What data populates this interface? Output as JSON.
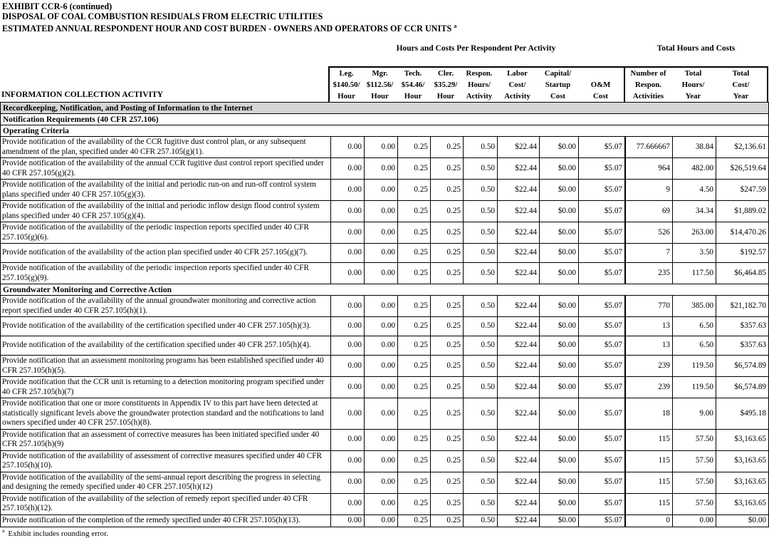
{
  "title": {
    "line1": "EXHIBIT CCR-6 (continued)",
    "line2": "DISPOSAL OF COAL COMBUSTION RESIDUALS FROM ELECTRIC UTILITIES",
    "line3": "ESTIMATED ANNUAL RESPONDENT HOUR AND COST BURDEN - OWNERS AND OPERATORS OF CCR UNITS",
    "note_mark": "a"
  },
  "table": {
    "group_headers": {
      "per_activity": "Hours and Costs Per Respondent Per Activity",
      "totals": "Total Hours and Costs"
    },
    "info_header": "INFORMATION COLLECTION ACTIVITY",
    "columns": [
      {
        "id": "leg",
        "lines": [
          "Leg.",
          "$140.50/",
          "Hour"
        ]
      },
      {
        "id": "mgr",
        "lines": [
          "Mgr.",
          "$112.56/",
          "Hour"
        ]
      },
      {
        "id": "tech",
        "lines": [
          "Tech.",
          "$54.46/",
          "Hour"
        ]
      },
      {
        "id": "cler",
        "lines": [
          "Cler.",
          "$35.29/",
          "Hour"
        ]
      },
      {
        "id": "respon-hours",
        "lines": [
          "Respon.",
          "Hours/",
          "Activity"
        ]
      },
      {
        "id": "labor-cost",
        "lines": [
          "Labor",
          "Cost/",
          "Activity"
        ]
      },
      {
        "id": "capital-startup",
        "lines": [
          "Capital/",
          "Startup",
          "Cost"
        ]
      },
      {
        "id": "om-cost",
        "lines": [
          "",
          "O&M",
          "Cost"
        ]
      },
      {
        "id": "number-respon-activities",
        "lines": [
          "Number of",
          "Respon.",
          "Activities"
        ]
      },
      {
        "id": "total-hours-year",
        "lines": [
          "Total",
          "Hours/",
          "Year"
        ]
      },
      {
        "id": "total-cost-year",
        "lines": [
          "Total",
          "Cost/",
          "Year"
        ]
      }
    ],
    "rows": [
      {
        "type": "section-shaded",
        "label": "Recordkeeping, Notification, and Posting of Information to the Internet"
      },
      {
        "type": "section",
        "label": "Notification Requirements (40 CFR 257.106)"
      },
      {
        "type": "section",
        "label": "Operating Criteria"
      },
      {
        "type": "data",
        "activity": "Provide notification of the availability of the CCR fugitive dust control plan, or any subsequent amendment of the plan, specified under 40 CFR 257.105(g)(1).",
        "values": [
          "0.00",
          "0.00",
          "0.25",
          "0.25",
          "0.50",
          "$22.44",
          "$0.00",
          "$5.07",
          "77.666667",
          "38.84",
          "$2,136.61"
        ]
      },
      {
        "type": "data",
        "activity": "Provide notification of the availability of the annual CCR fugitive dust control report specified under 40 CFR 257.105(g)(2).",
        "values": [
          "0.00",
          "0.00",
          "0.25",
          "0.25",
          "0.50",
          "$22.44",
          "$0.00",
          "$5.07",
          "964",
          "482.00",
          "$26,519.64"
        ]
      },
      {
        "type": "data",
        "activity": "Provide notification of the availability of the initial and periodic run-on and run-off control system plans specified under 40 CFR 257.105(g)(3).",
        "values": [
          "0.00",
          "0.00",
          "0.25",
          "0.25",
          "0.50",
          "$22.44",
          "$0.00",
          "$5.07",
          "9",
          "4.50",
          "$247.59"
        ]
      },
      {
        "type": "data",
        "activity": "Provide notification of the availability of the initial and periodic inflow design flood control system plans specified under 40 CFR 257.105(g)(4).",
        "values": [
          "0.00",
          "0.00",
          "0.25",
          "0.25",
          "0.50",
          "$22.44",
          "$0.00",
          "$5.07",
          "69",
          "34.34",
          "$1,889.02"
        ]
      },
      {
        "type": "data",
        "activity": "Provide notification of the availability of the periodic inspection reports specified under 40 CFR 257.105(g)(6).",
        "values": [
          "0.00",
          "0.00",
          "0.25",
          "0.25",
          "0.50",
          "$22.44",
          "$0.00",
          "$5.07",
          "526",
          "263.00",
          "$14,470.26"
        ]
      },
      {
        "type": "data",
        "activity": "Provide notification of the availability of the action plan specified under 40 CFR 257.105(g)(7).",
        "values": [
          "0.00",
          "0.00",
          "0.25",
          "0.25",
          "0.50",
          "$22.44",
          "$0.00",
          "$5.07",
          "7",
          "3.50",
          "$192.57"
        ]
      },
      {
        "type": "data",
        "activity": "Provide notification of the availability of the periodic inspection reports specified under 40 CFR 257.105(g)(9).",
        "values": [
          "0.00",
          "0.00",
          "0.25",
          "0.25",
          "0.50",
          "$22.44",
          "$0.00",
          "$5.07",
          "235",
          "117.50",
          "$6,464.85"
        ]
      },
      {
        "type": "section",
        "label": "Groundwater Monitoring and Corrective Action"
      },
      {
        "type": "data",
        "activity": "Provide notification of the availability of the annual groundwater monitoring and corrective action report specified under 40 CFR 257.105(h)(1).",
        "values": [
          "0.00",
          "0.00",
          "0.25",
          "0.25",
          "0.50",
          "$22.44",
          "$0.00",
          "$5.07",
          "770",
          "385.00",
          "$21,182.70"
        ]
      },
      {
        "type": "data",
        "activity": "Provide notification of the availability of the certification specified under 40 CFR 257.105(h)(3).",
        "values": [
          "0.00",
          "0.00",
          "0.25",
          "0.25",
          "0.50",
          "$22.44",
          "$0.00",
          "$5.07",
          "13",
          "6.50",
          "$357.63"
        ]
      },
      {
        "type": "data",
        "activity": "Provide notification of the availability of the certification specified under 40 CFR 257.105(h)(4).",
        "values": [
          "0.00",
          "0.00",
          "0.25",
          "0.25",
          "0.50",
          "$22.44",
          "$0.00",
          "$5.07",
          "13",
          "6.50",
          "$357.63"
        ]
      },
      {
        "type": "data",
        "activity": "Provide notification that an assessment monitoring programs has been established specified under 40 CFR 257.105(h)(5).",
        "values": [
          "0.00",
          "0.00",
          "0.25",
          "0.25",
          "0.50",
          "$22.44",
          "$0.00",
          "$5.07",
          "239",
          "119.50",
          "$6,574.89"
        ]
      },
      {
        "type": "data",
        "activity": "Provide notification that the CCR unit is returning to a detection monitoring program specified under 40 CFR 257.105(h)(7)",
        "values": [
          "0.00",
          "0.00",
          "0.25",
          "0.25",
          "0.50",
          "$22.44",
          "$0.00",
          "$5.07",
          "239",
          "119.50",
          "$6,574.89"
        ]
      },
      {
        "type": "data",
        "activity": "Provide notification that one or more constituents in Appendix IV to this part have been detected at statistically significant levels above the groundwater protection standard and the notifications to land owners specified under 40 CFR 257.105(h)(8).",
        "values": [
          "0.00",
          "0.00",
          "0.25",
          "0.25",
          "0.50",
          "$22.44",
          "$0.00",
          "$5.07",
          "18",
          "9.00",
          "$495.18"
        ]
      },
      {
        "type": "data",
        "activity": "Provide notification that an assessment of corrective measures has been initiated specified under 40 CFR 257.105(h)(9)",
        "values": [
          "0.00",
          "0.00",
          "0.25",
          "0.25",
          "0.50",
          "$22.44",
          "$0.00",
          "$5.07",
          "115",
          "57.50",
          "$3,163.65"
        ]
      },
      {
        "type": "data",
        "activity": "Provide notification of the availability of assessment of corrective measures specified under 40 CFR 257.105(h)(10).",
        "values": [
          "0.00",
          "0.00",
          "0.25",
          "0.25",
          "0.50",
          "$22.44",
          "$0.00",
          "$5.07",
          "115",
          "57.50",
          "$3,163.65"
        ]
      },
      {
        "type": "data",
        "activity": "Provide notification of the availability of the semi-annual report describing the progress in selecting and designing the remedy specified under 40 CFR 257.105(h)(12)",
        "values": [
          "0.00",
          "0.00",
          "0.25",
          "0.25",
          "0.50",
          "$22.44",
          "$0.00",
          "$5.07",
          "115",
          "57.50",
          "$3,163.65"
        ]
      },
      {
        "type": "data",
        "activity": "Provide notification of the availability of the selection of remedy report specified under 40 CFR 257.105(h)(12).",
        "values": [
          "0.00",
          "0.00",
          "0.25",
          "0.25",
          "0.50",
          "$22.44",
          "$0.00",
          "$5.07",
          "115",
          "57.50",
          "$3,163.65"
        ]
      },
      {
        "type": "data",
        "activity": "Provide notification of the completion of the remedy specified under 40 CFR 257.105(h)(13).",
        "values": [
          "0.00",
          "0.00",
          "0.25",
          "0.25",
          "0.50",
          "$22.44",
          "$0.00",
          "$5.07",
          "0",
          "0.00",
          "$0.00"
        ]
      }
    ]
  },
  "footnote": {
    "mark": "a",
    "text": "Exhibit includes rounding error."
  }
}
